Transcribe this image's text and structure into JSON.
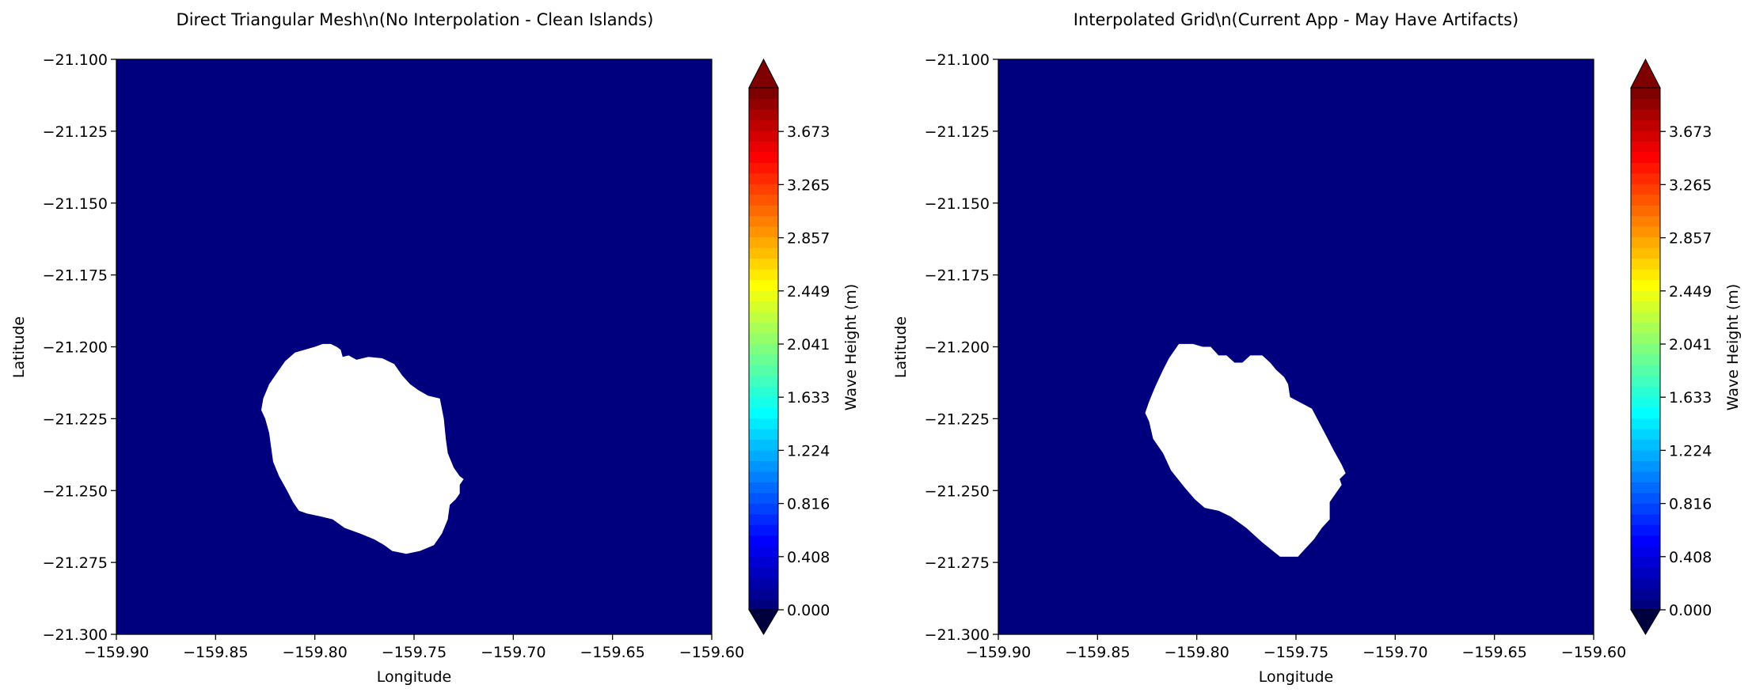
{
  "colors": {
    "background": "#ffffff",
    "ocean": "#00007f",
    "land": "#ffffff",
    "colormap": [
      "#00007f",
      "#0000ff",
      "#007fff",
      "#00ffff",
      "#7fff7f",
      "#ffff00",
      "#ff7f00",
      "#ff0000",
      "#7f0000"
    ]
  },
  "chart_data": [
    {
      "type": "heatmap",
      "title": "Direct Triangular Mesh\\n(No Interpolation - Clean Islands)",
      "xlabel": "Longitude",
      "ylabel": "Latitude",
      "xlim": [
        -159.9,
        -159.6
      ],
      "ylim": [
        -21.3,
        -21.1
      ],
      "x_ticks": [
        "−159.90",
        "−159.85",
        "−159.80",
        "−159.75",
        "−159.70",
        "−159.65",
        "−159.60"
      ],
      "y_ticks": [
        "−21.100",
        "−21.125",
        "−21.150",
        "−21.175",
        "−21.200",
        "−21.225",
        "−21.250",
        "−21.275",
        "−21.300"
      ],
      "field_value": 0.0,
      "island_outline": [
        [
          -159.792,
          -21.199
        ],
        [
          -159.789,
          -21.2
        ],
        [
          -159.787,
          -21.201
        ],
        [
          -159.786,
          -21.2035
        ],
        [
          -159.783,
          -21.203
        ],
        [
          -159.779,
          -21.2045
        ],
        [
          -159.773,
          -21.2035
        ],
        [
          -159.766,
          -21.204
        ],
        [
          -159.76,
          -21.206
        ],
        [
          -159.756,
          -21.21
        ],
        [
          -159.752,
          -21.213
        ],
        [
          -159.748,
          -21.215
        ],
        [
          -159.743,
          -21.217
        ],
        [
          -159.737,
          -21.218
        ],
        [
          -159.735,
          -21.225
        ],
        [
          -159.734,
          -21.232
        ],
        [
          -159.733,
          -21.237
        ],
        [
          -159.73,
          -21.242
        ],
        [
          -159.727,
          -21.245
        ],
        [
          -159.725,
          -21.246
        ],
        [
          -159.727,
          -21.248
        ],
        [
          -159.727,
          -21.251
        ],
        [
          -159.729,
          -21.253
        ],
        [
          -159.732,
          -21.255
        ],
        [
          -159.733,
          -21.26
        ],
        [
          -159.736,
          -21.265
        ],
        [
          -159.74,
          -21.269
        ],
        [
          -159.747,
          -21.271
        ],
        [
          -159.754,
          -21.272
        ],
        [
          -159.761,
          -21.271
        ],
        [
          -159.765,
          -21.269
        ],
        [
          -159.77,
          -21.267
        ],
        [
          -159.777,
          -21.265
        ],
        [
          -159.785,
          -21.263
        ],
        [
          -159.791,
          -21.26
        ],
        [
          -159.797,
          -21.259
        ],
        [
          -159.804,
          -21.258
        ],
        [
          -159.808,
          -21.257
        ],
        [
          -159.811,
          -21.254
        ],
        [
          -159.814,
          -21.25
        ],
        [
          -159.818,
          -21.245
        ],
        [
          -159.821,
          -21.24
        ],
        [
          -159.822,
          -21.235
        ],
        [
          -159.823,
          -21.23
        ],
        [
          -159.825,
          -21.225
        ],
        [
          -159.827,
          -21.222
        ],
        [
          -159.826,
          -21.218
        ],
        [
          -159.823,
          -21.213
        ],
        [
          -159.818,
          -21.208
        ],
        [
          -159.815,
          -21.205
        ],
        [
          -159.81,
          -21.202
        ],
        [
          -159.805,
          -21.201
        ],
        [
          -159.8,
          -21.2
        ],
        [
          -159.796,
          -21.199
        ]
      ],
      "colorbar": {
        "label": "Wave Height (m)",
        "ticks": [
          "0.000",
          "0.408",
          "0.816",
          "1.224",
          "1.633",
          "2.041",
          "2.449",
          "2.857",
          "3.265",
          "3.673"
        ],
        "extend": "both"
      }
    },
    {
      "type": "heatmap",
      "title": "Interpolated Grid\\n(Current App - May Have Artifacts)",
      "xlabel": "Longitude",
      "ylabel": "Latitude",
      "xlim": [
        -159.9,
        -159.6
      ],
      "ylim": [
        -21.3,
        -21.1
      ],
      "x_ticks": [
        "−159.90",
        "−159.85",
        "−159.80",
        "−159.75",
        "−159.70",
        "−159.65",
        "−159.60"
      ],
      "y_ticks": [
        "−21.100",
        "−21.125",
        "−21.150",
        "−21.175",
        "−21.200",
        "−21.225",
        "−21.250",
        "−21.275",
        "−21.300"
      ],
      "field_value": 0.0,
      "island_outline": [
        [
          -159.809,
          -21.199
        ],
        [
          -159.802,
          -21.199
        ],
        [
          -159.797,
          -21.2
        ],
        [
          -159.793,
          -21.2
        ],
        [
          -159.789,
          -21.203
        ],
        [
          -159.785,
          -21.203
        ],
        [
          -159.781,
          -21.2055
        ],
        [
          -159.777,
          -21.2055
        ],
        [
          -159.773,
          -21.203
        ],
        [
          -159.767,
          -21.203
        ],
        [
          -159.763,
          -21.2055
        ],
        [
          -159.76,
          -21.208
        ],
        [
          -159.756,
          -21.2105
        ],
        [
          -159.754,
          -21.213
        ],
        [
          -159.753,
          -21.2175
        ],
        [
          -159.742,
          -21.2215
        ],
        [
          -159.734,
          -21.232
        ],
        [
          -159.731,
          -21.236
        ],
        [
          -159.727,
          -21.241
        ],
        [
          -159.725,
          -21.244
        ],
        [
          -159.728,
          -21.246
        ],
        [
          -159.727,
          -21.248
        ],
        [
          -159.733,
          -21.254
        ],
        [
          -159.733,
          -21.26
        ],
        [
          -159.737,
          -21.263
        ],
        [
          -159.741,
          -21.267
        ],
        [
          -159.745,
          -21.27
        ],
        [
          -159.749,
          -21.273
        ],
        [
          -159.758,
          -21.273
        ],
        [
          -159.767,
          -21.268
        ],
        [
          -159.775,
          -21.263
        ],
        [
          -159.783,
          -21.259
        ],
        [
          -159.789,
          -21.257
        ],
        [
          -159.796,
          -21.256
        ],
        [
          -159.801,
          -21.253
        ],
        [
          -159.806,
          -21.249
        ],
        [
          -159.813,
          -21.243
        ],
        [
          -159.817,
          -21.237
        ],
        [
          -159.822,
          -21.232
        ],
        [
          -159.824,
          -21.226
        ],
        [
          -159.826,
          -21.223
        ],
        [
          -159.824,
          -21.219
        ],
        [
          -159.821,
          -21.214
        ],
        [
          -159.817,
          -21.208
        ],
        [
          -159.814,
          -21.204
        ]
      ],
      "colorbar": {
        "label": "Wave Height (m)",
        "ticks": [
          "0.000",
          "0.408",
          "0.816",
          "1.224",
          "1.633",
          "2.041",
          "2.449",
          "2.857",
          "3.265",
          "3.673"
        ],
        "extend": "both"
      }
    }
  ]
}
